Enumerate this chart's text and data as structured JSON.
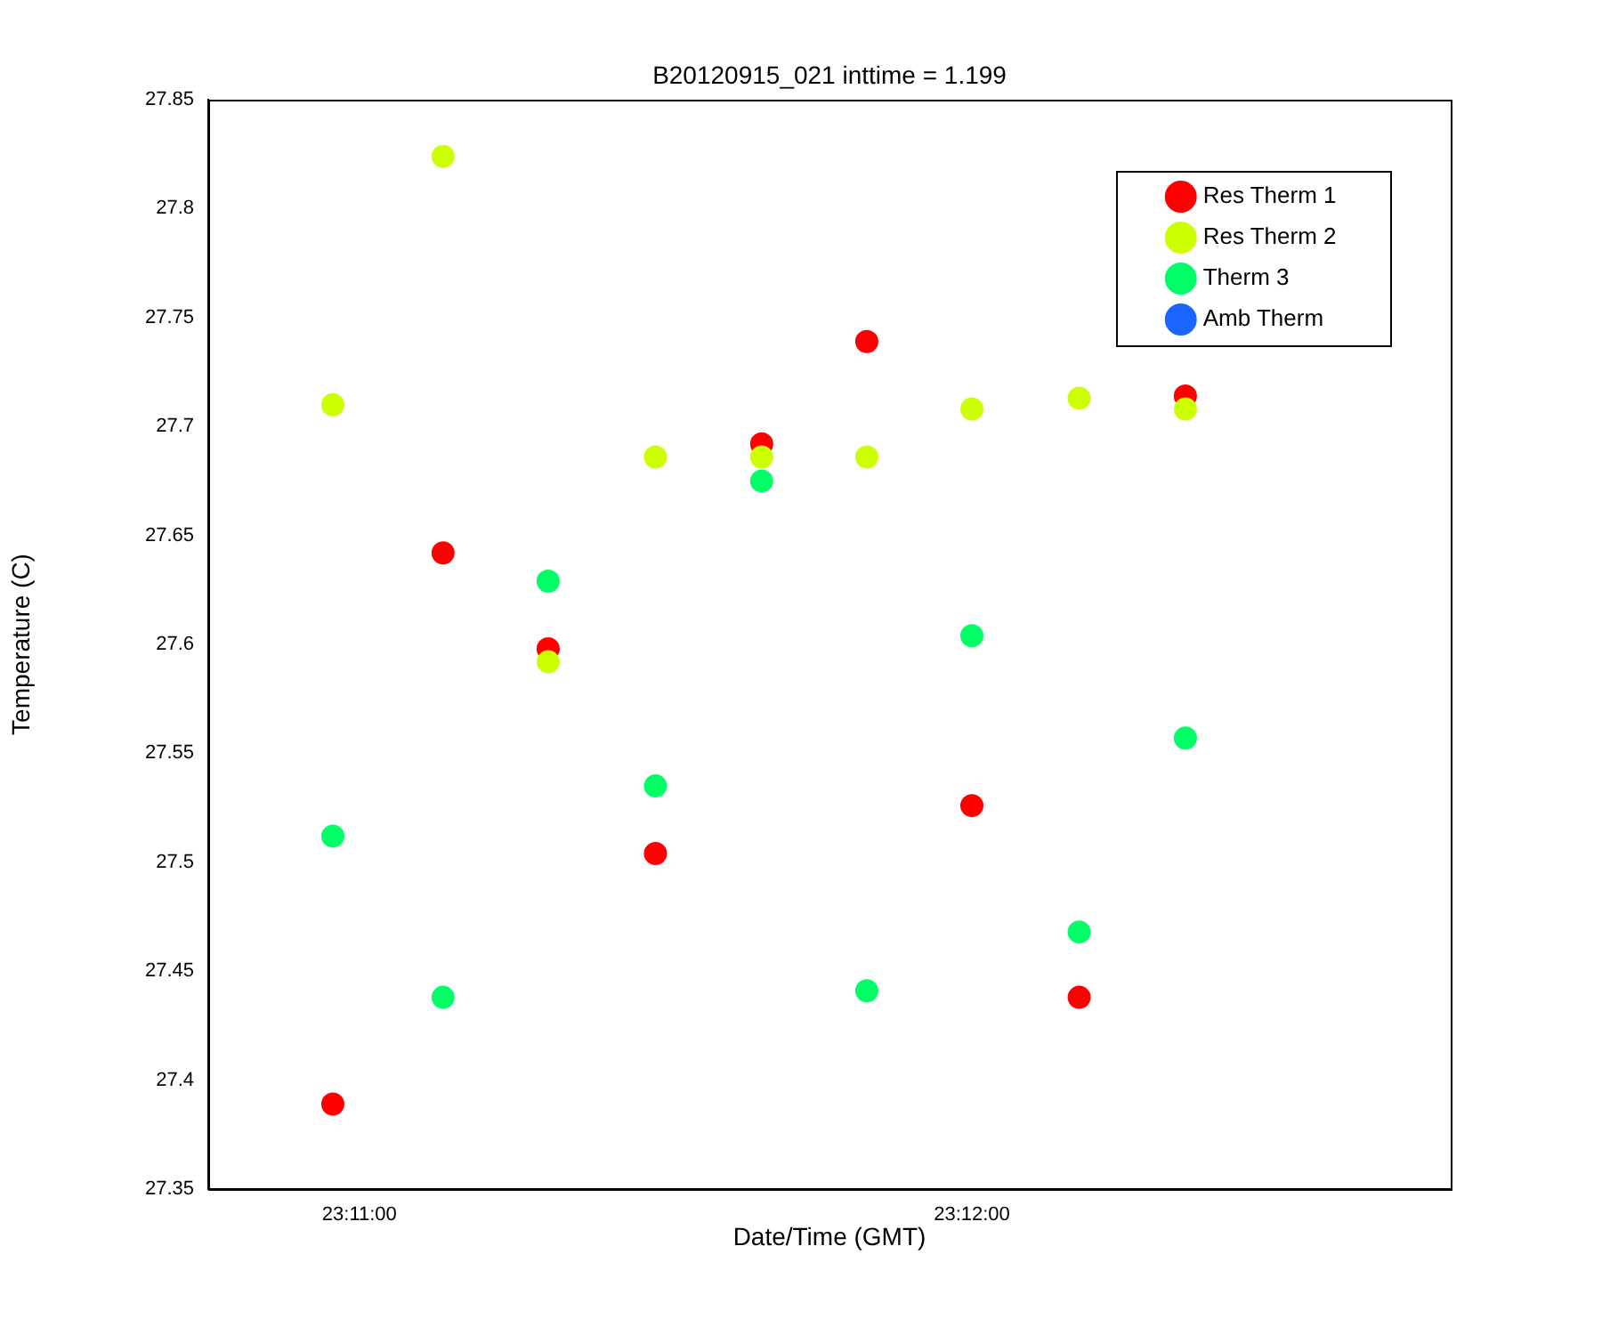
{
  "chart_data": {
    "type": "scatter",
    "title": "B20120915_021 inttime = 1.199",
    "xlabel": "Date/Time (GMT)",
    "ylabel": "Temperature (C)",
    "x": [
      23.18261,
      23.18561,
      23.18847,
      23.19139,
      23.19428,
      23.19714,
      23.2,
      23.20292,
      23.20581
    ],
    "series": [
      {
        "name": "Res Therm 1",
        "color": "#ff0000",
        "values": [
          27.389,
          27.642,
          27.598,
          27.504,
          27.692,
          27.739,
          27.526,
          27.438,
          27.714
        ]
      },
      {
        "name": "Res Therm 2",
        "color": "#ccff00",
        "values": [
          27.71,
          27.824,
          27.592,
          27.686,
          27.686,
          27.686,
          27.708,
          27.713,
          27.708
        ]
      },
      {
        "name": "Therm 3",
        "color": "#00ff66",
        "values": [
          27.512,
          27.438,
          27.629,
          27.535,
          27.675,
          27.441,
          27.604,
          27.468,
          27.557
        ]
      },
      {
        "name": "Amb Therm",
        "color": "#1a66ff",
        "values": [
          null,
          null,
          null,
          null,
          null,
          null,
          null,
          null,
          null
        ]
      }
    ],
    "xlim": [
      23.17922,
      23.21303
    ],
    "xticks": [
      {
        "value": 23.183333,
        "label": "23:11:00"
      },
      {
        "value": 23.2,
        "label": "23:12:00"
      }
    ],
    "ylim": [
      27.35,
      27.85
    ],
    "yticks": [
      27.35,
      27.4,
      27.45,
      27.5,
      27.55,
      27.6,
      27.65,
      27.7,
      27.75,
      27.8,
      27.85
    ],
    "grid": false,
    "legend": "top right",
    "marker": "circle"
  }
}
